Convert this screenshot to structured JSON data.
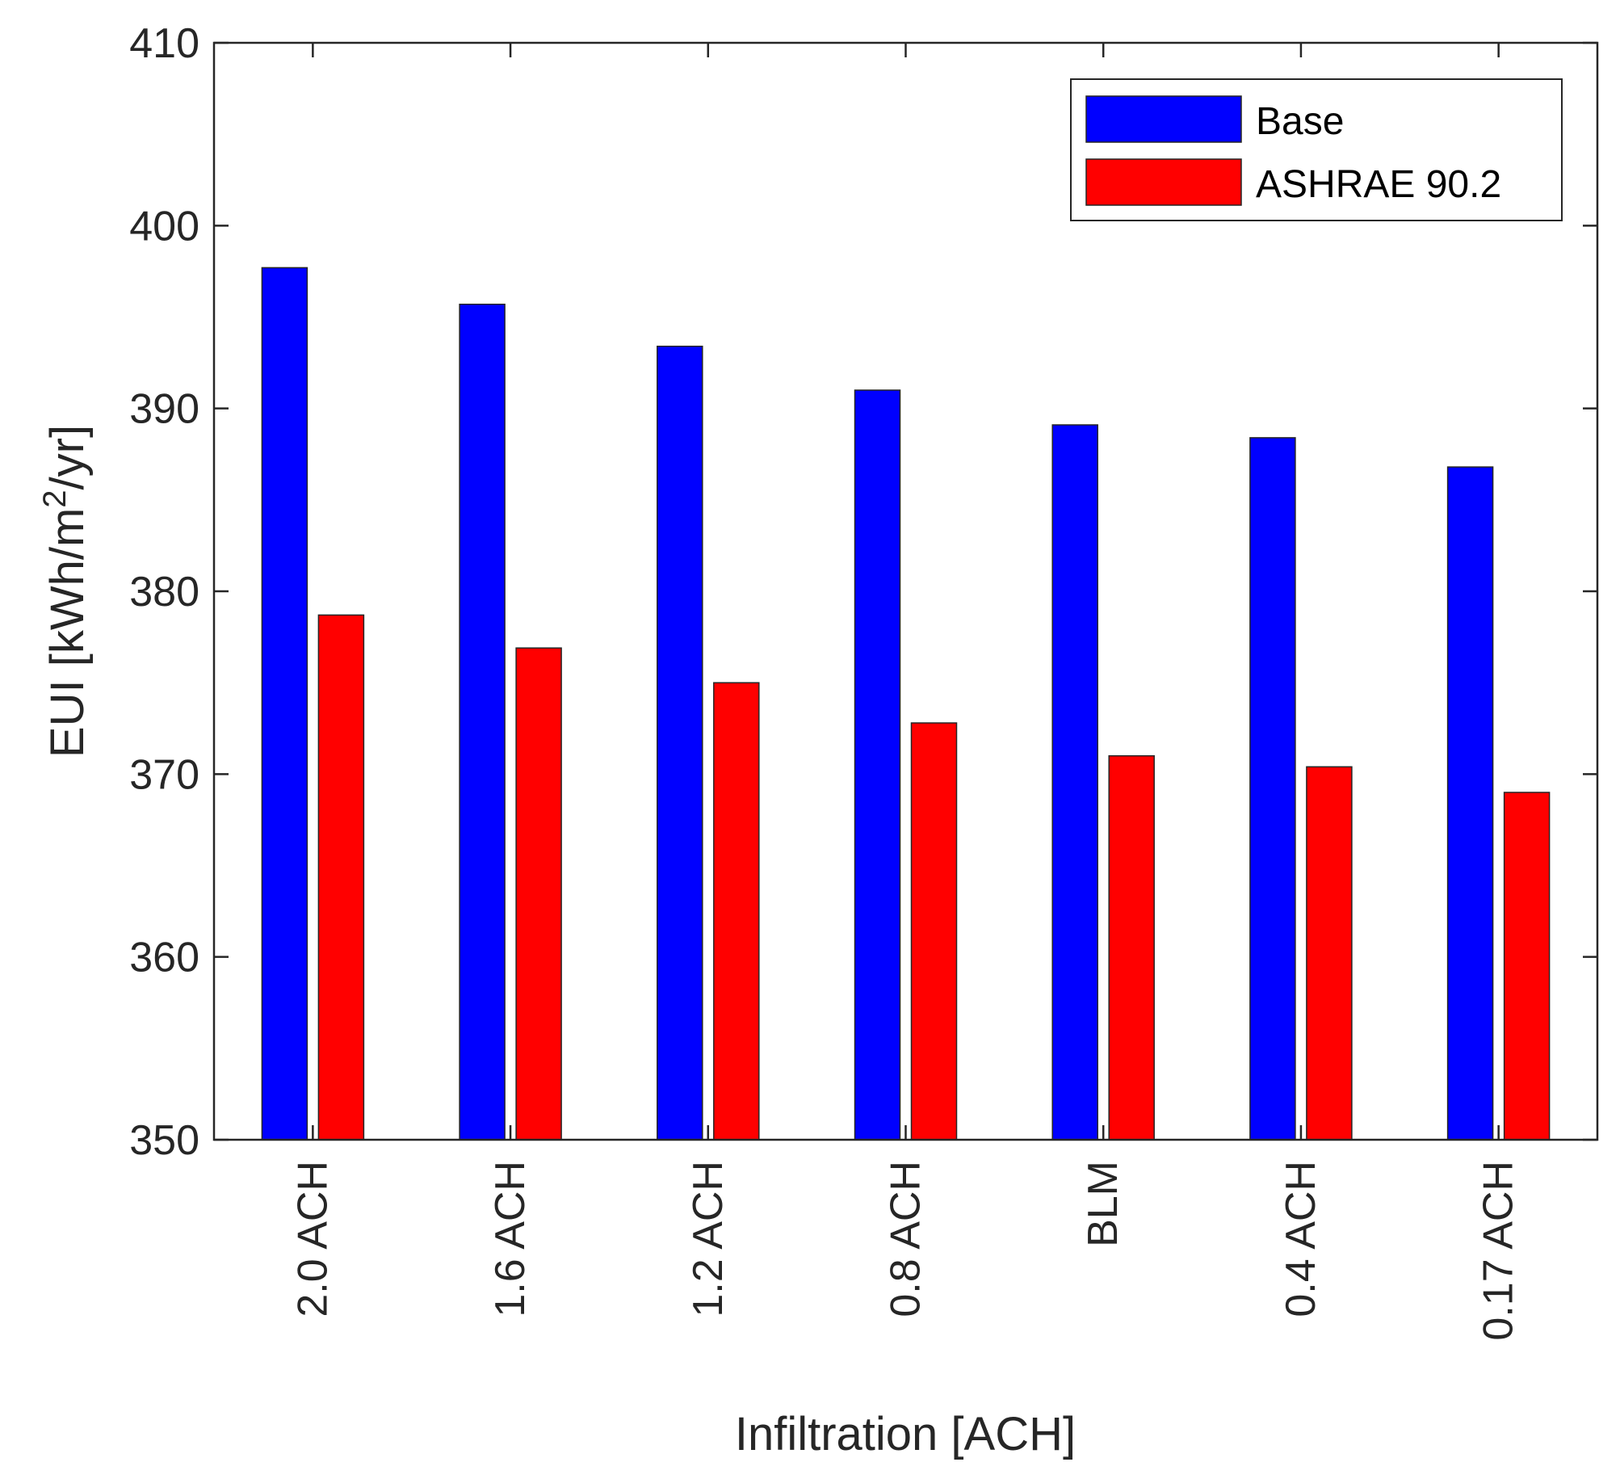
{
  "chart_data": {
    "type": "bar",
    "title": "",
    "xlabel": "Infiltration [ACH]",
    "ylabel": {
      "prefix": "EUI [kWh/m",
      "superscript": "2",
      "suffix": "/yr]"
    },
    "categories": [
      "2.0 ACH",
      "1.6 ACH",
      "1.2 ACH",
      "0.8 ACH",
      "BLM",
      "0.4 ACH",
      "0.17 ACH"
    ],
    "series": [
      {
        "name": "Base",
        "color": "#0000ff",
        "values": [
          397.7,
          395.7,
          393.4,
          391.0,
          389.1,
          388.4,
          386.8
        ]
      },
      {
        "name": "ASHRAE 90.2",
        "color": "#ff0000",
        "values": [
          378.7,
          376.9,
          375.0,
          372.8,
          371.0,
          370.4,
          369.0
        ]
      }
    ],
    "ylim": [
      350,
      410
    ],
    "yticks": [
      "350",
      "360",
      "370",
      "380",
      "390",
      "400",
      "410"
    ],
    "legend_position": "top-right",
    "grid": false
  }
}
